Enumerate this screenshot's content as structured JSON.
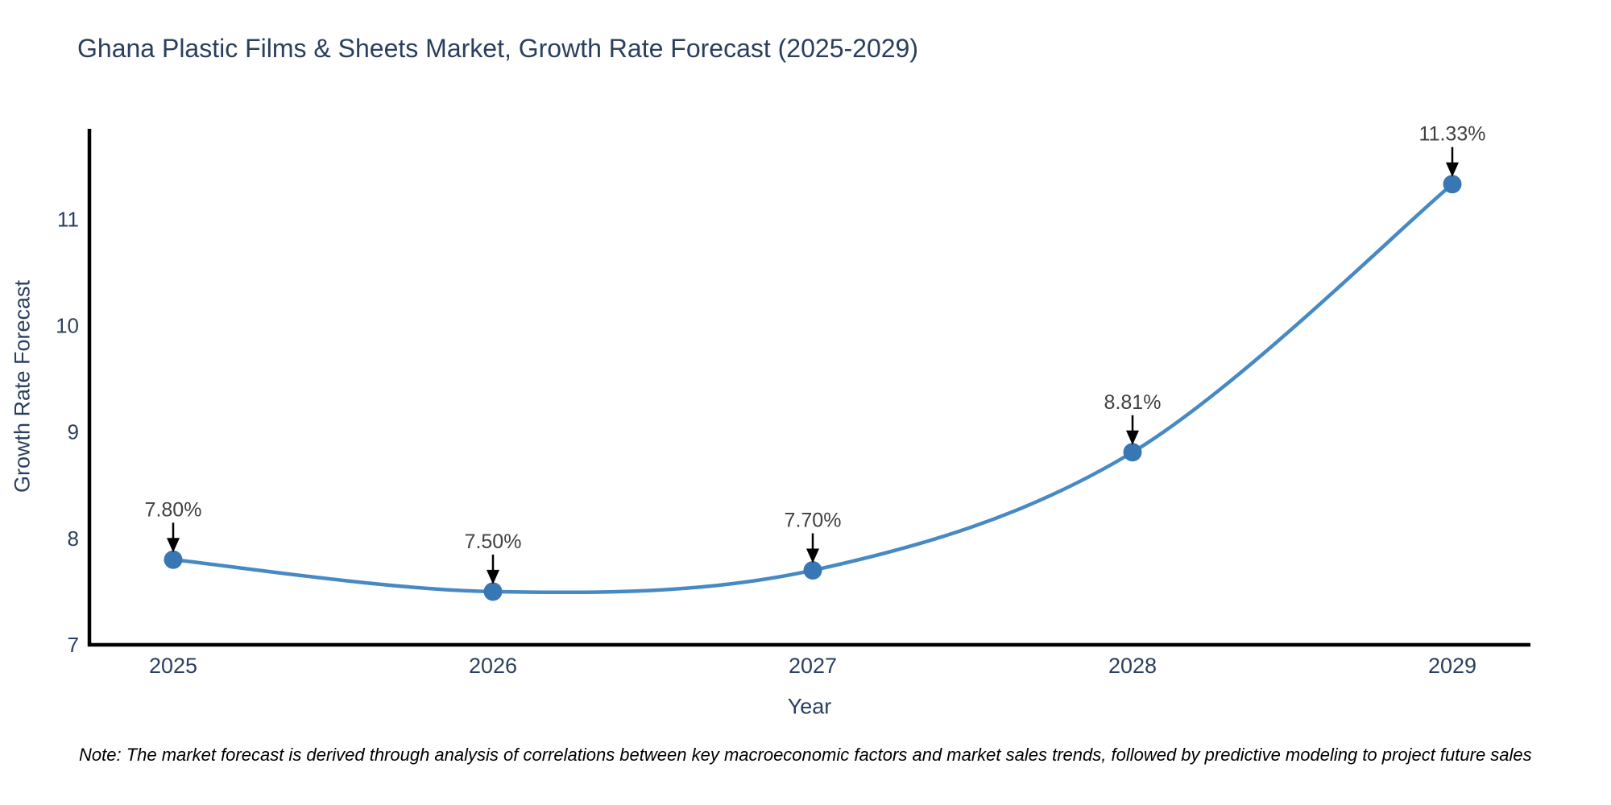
{
  "note": "Note: The market forecast is derived through analysis of correlations between key macroeconomic factors and market sales trends, followed by predictive modeling to project future sales",
  "chart_data": {
    "type": "line",
    "title": "Ghana Plastic Films & Sheets Market, Growth Rate Forecast (2025-2029)",
    "xlabel": "Year",
    "ylabel": "Growth Rate Forecast",
    "categories": [
      "2025",
      "2026",
      "2027",
      "2028",
      "2029"
    ],
    "values": [
      7.8,
      7.5,
      7.7,
      8.81,
      11.33
    ],
    "point_labels": [
      "7.80%",
      "7.50%",
      "7.70%",
      "8.81%",
      "11.33%"
    ],
    "y_ticks": [
      "7",
      "8",
      "9",
      "10",
      "11"
    ],
    "y_tick_values": [
      7,
      8,
      9,
      10,
      11
    ],
    "ylim": [
      7,
      11.85
    ],
    "line_shape": "spline",
    "grid": false,
    "legend_position": "none",
    "annotations_have_arrows": true,
    "colors": {
      "line": "#4789c3",
      "marker": "#3876b4",
      "axis": "#000000",
      "heading_text": "#2a3f5f",
      "tick_text": "#2a3f5f",
      "annotation_text": "#404040",
      "arrow": "#000000",
      "note_text": "#000000",
      "background": "#ffffff"
    }
  }
}
